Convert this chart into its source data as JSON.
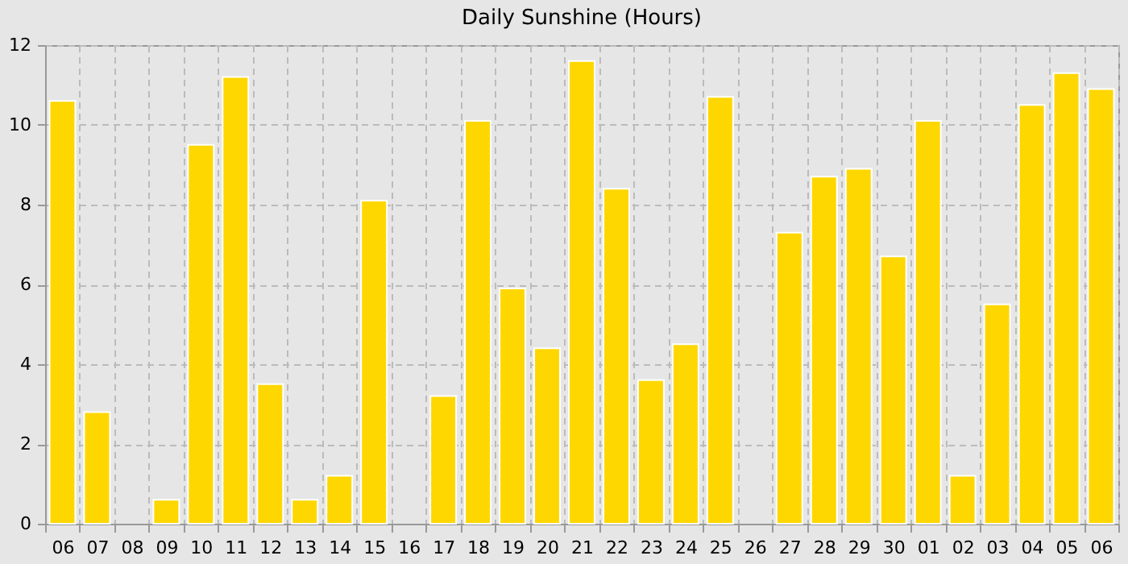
{
  "chart_data": {
    "type": "bar",
    "title": "Daily Sunshine (Hours)",
    "categories": [
      "06",
      "07",
      "08",
      "09",
      "10",
      "11",
      "12",
      "13",
      "14",
      "15",
      "16",
      "17",
      "18",
      "19",
      "20",
      "21",
      "22",
      "23",
      "24",
      "25",
      "26",
      "27",
      "28",
      "29",
      "30",
      "01",
      "02",
      "03",
      "04",
      "05",
      "06"
    ],
    "values": [
      10.6,
      2.8,
      0,
      0.6,
      9.5,
      11.2,
      3.5,
      0.6,
      1.2,
      8.1,
      0,
      3.2,
      10.1,
      5.9,
      4.4,
      11.6,
      8.4,
      3.6,
      4.5,
      10.7,
      0,
      7.3,
      8.7,
      8.9,
      6.7,
      10.1,
      1.2,
      5.5,
      10.5,
      11.3,
      10.9
    ],
    "color": "#ffd700",
    "ylim": [
      0,
      12
    ],
    "yticks": [
      0,
      2,
      4,
      6,
      8,
      10,
      12
    ],
    "grid": true
  }
}
